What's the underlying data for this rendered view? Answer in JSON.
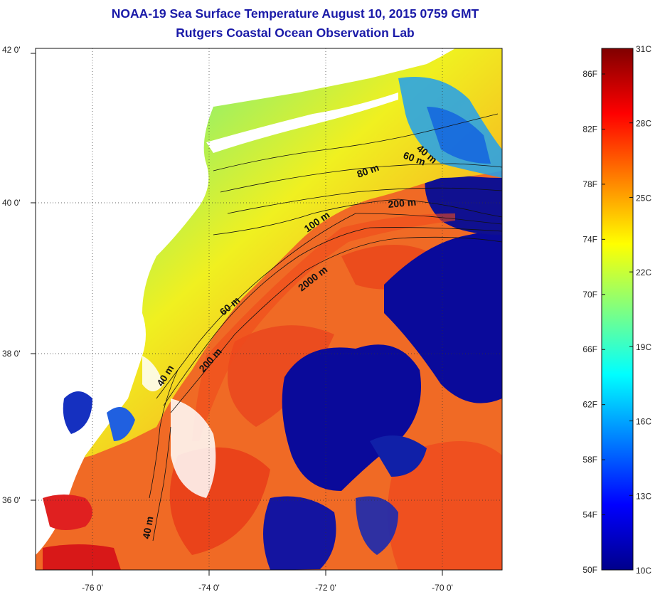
{
  "title": "NOAA-19 Sea Surface Temperature August 10, 2015 0759 GMT",
  "subtitle": "Rutgers Coastal Ocean Observation Lab",
  "axes": {
    "lat_labels": [
      {
        "text": "42 0'",
        "lat": 42
      },
      {
        "text": "40 0'",
        "lat": 40
      },
      {
        "text": "38 0'",
        "lat": 38
      },
      {
        "text": "36 0'",
        "lat": 36
      }
    ],
    "lon_labels": [
      {
        "text": "-76 0'",
        "lon": -76
      },
      {
        "text": "-74 0'",
        "lon": -74
      },
      {
        "text": "-72 0'",
        "lon": -72
      },
      {
        "text": "-70 0'",
        "lon": -70
      }
    ]
  },
  "depth_contours": [
    {
      "text": "40 m"
    },
    {
      "text": "60 m"
    },
    {
      "text": "80 m"
    },
    {
      "text": "200 m"
    },
    {
      "text": "100 m"
    },
    {
      "text": "2000 m"
    },
    {
      "text": "60 m"
    },
    {
      "text": "200 m"
    },
    {
      "text": "40 m"
    },
    {
      "text": "40 m"
    }
  ],
  "colorbar": {
    "fahrenheit": [
      "86F",
      "82F",
      "78F",
      "74F",
      "70F",
      "66F",
      "62F",
      "58F",
      "54F",
      "50F"
    ],
    "celsius": [
      "31C",
      "28C",
      "25C",
      "22C",
      "19C",
      "16C",
      "13C",
      "10C"
    ],
    "colors": [
      "#00008b",
      "#0000ff",
      "#0080ff",
      "#00ffff",
      "#80ff80",
      "#ffff00",
      "#ff8000",
      "#ff0000",
      "#800000"
    ]
  },
  "colors": {
    "title": "#1a1aa8",
    "deep_cold": "#1a1aa8",
    "shelf_warm": "#f5a020",
    "gulf_stream": "#f05020"
  }
}
